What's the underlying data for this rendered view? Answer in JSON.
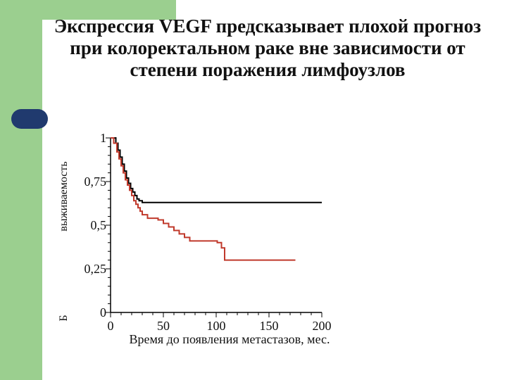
{
  "slide": {
    "title_lines": [
      "Экспрессия VEGF предсказывает плохой прогноз",
      "при колоректальном раке вне зависимости от",
      "степени поражения лимфоузлов"
    ],
    "colors": {
      "background": "#9bcf8f",
      "accent": "#203a6e"
    }
  },
  "chart_data": {
    "type": "line",
    "title": "",
    "xlabel": "Время до появления метастазов, мес.",
    "ylabel": "выживаемость",
    "ylabel_prefix": "Б",
    "xlim": [
      0,
      200
    ],
    "ylim": [
      0,
      1
    ],
    "x_ticks": [
      "0",
      "50",
      "100",
      "150",
      "200"
    ],
    "y_ticks": [
      "0",
      "0,25",
      "0,5",
      "0,75",
      "1"
    ],
    "series": [
      {
        "color": "#000000",
        "x": [
          0,
          3,
          5,
          7,
          9,
          11,
          13,
          15,
          17,
          19,
          21,
          23,
          25,
          27,
          30,
          200
        ],
        "y": [
          1.0,
          1.0,
          0.97,
          0.93,
          0.89,
          0.85,
          0.81,
          0.77,
          0.74,
          0.71,
          0.69,
          0.67,
          0.65,
          0.64,
          0.63,
          0.63
        ]
      },
      {
        "color": "#c0392b",
        "x": [
          0,
          3,
          6,
          8,
          10,
          12,
          14,
          16,
          18,
          20,
          22,
          24,
          26,
          28,
          30,
          35,
          40,
          45,
          50,
          55,
          60,
          65,
          70,
          75,
          80,
          90,
          100,
          101,
          105,
          108,
          110,
          120,
          130,
          140,
          150,
          160,
          170,
          175
        ],
        "y": [
          1.0,
          0.97,
          0.92,
          0.88,
          0.84,
          0.8,
          0.76,
          0.73,
          0.7,
          0.67,
          0.64,
          0.62,
          0.6,
          0.58,
          0.56,
          0.54,
          0.54,
          0.53,
          0.51,
          0.49,
          0.47,
          0.45,
          0.43,
          0.41,
          0.41,
          0.41,
          0.41,
          0.4,
          0.37,
          0.3,
          0.3,
          0.3,
          0.3,
          0.3,
          0.3,
          0.3,
          0.3,
          0.3
        ]
      }
    ]
  }
}
